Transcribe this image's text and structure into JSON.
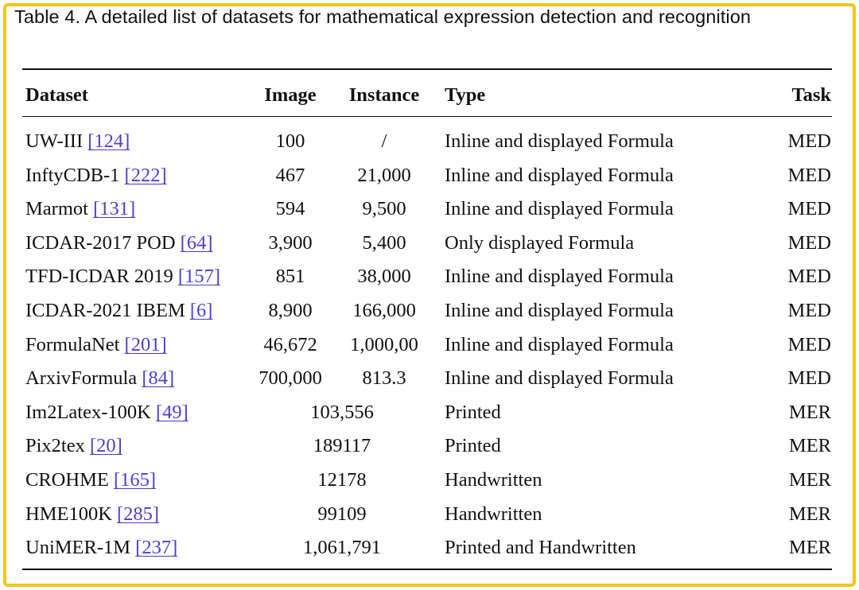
{
  "caption": "Table 4.  A detailed list of datasets for mathematical expression detection and recognition",
  "columns": {
    "dataset": "Dataset",
    "image": "Image",
    "instance": "Instance",
    "type": "Type",
    "task": "Task"
  },
  "rows": [
    {
      "name": "UW-III",
      "ref": "[124]",
      "image": "100",
      "instance": "/",
      "type": "Inline and displayed Formula",
      "task": "MED"
    },
    {
      "name": "InftyCDB-1",
      "ref": "[222]",
      "image": "467",
      "instance": "21,000",
      "type": "Inline and displayed Formula",
      "task": "MED"
    },
    {
      "name": "Marmot",
      "ref": "[131]",
      "image": "594",
      "instance": "9,500",
      "type": "Inline and displayed Formula",
      "task": "MED"
    },
    {
      "name": "ICDAR-2017 POD",
      "ref": "[64]",
      "image": "3,900",
      "instance": "5,400",
      "type": "Only displayed Formula",
      "task": "MED"
    },
    {
      "name": "TFD-ICDAR 2019",
      "ref": "[157]",
      "image": "851",
      "instance": "38,000",
      "type": "Inline and displayed Formula",
      "task": "MED"
    },
    {
      "name": "ICDAR-2021 IBEM",
      "ref": "[6]",
      "image": "8,900",
      "instance": "166,000",
      "type": "Inline and displayed Formula",
      "task": "MED"
    },
    {
      "name": "FormulaNet",
      "ref": "[201]",
      "image": "46,672",
      "instance": "1,000,00",
      "type": "Inline and displayed Formula",
      "task": "MED"
    },
    {
      "name": "ArxivFormula",
      "ref": "[84]",
      "image": "700,000",
      "instance": "813.3",
      "type": "Inline and displayed Formula",
      "task": "MED"
    },
    {
      "name": "Im2Latex-100K",
      "ref": "[49]",
      "merged": "103,556",
      "type": "Printed",
      "task": "MER"
    },
    {
      "name": "Pix2tex",
      "ref": "[20]",
      "merged": "189117",
      "type": "Printed",
      "task": "MER"
    },
    {
      "name": "CROHME",
      "ref": "[165]",
      "merged": "12178",
      "type": "Handwritten",
      "task": "MER"
    },
    {
      "name": "HME100K",
      "ref": "[285]",
      "merged": "99109",
      "type": "Handwritten",
      "task": "MER"
    },
    {
      "name": "UniMER-1M",
      "ref": "[237]",
      "merged": "1,061,791",
      "type": "Printed and Handwritten",
      "task": "MER"
    }
  ]
}
